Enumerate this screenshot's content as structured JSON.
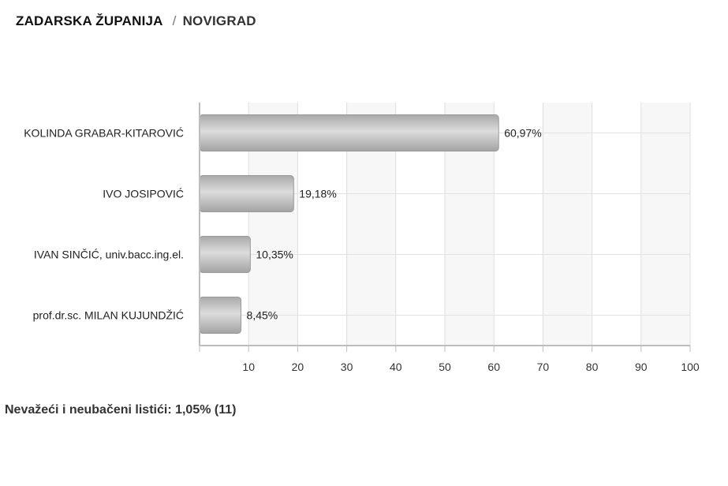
{
  "breadcrumb": {
    "region": "ZADARSKA ŽUPANIJA",
    "separator": "/",
    "city": "NOVIGRAD"
  },
  "chart_data": {
    "type": "bar",
    "orientation": "horizontal",
    "categories": [
      "KOLINDA GRABAR-KITAROVIĆ",
      "IVO JOSIPOVIĆ",
      "IVAN SINČIĆ, univ.bacc.ing.el.",
      "prof.dr.sc. MILAN KUJUNDŽIĆ"
    ],
    "values": [
      60.97,
      19.18,
      10.35,
      8.45
    ],
    "value_labels": [
      "60,97%",
      "19,18%",
      "10,35%",
      "8,45%"
    ],
    "xlim": [
      0,
      100
    ],
    "xticks": [
      10,
      20,
      30,
      40,
      50,
      60,
      70,
      80,
      90,
      100
    ],
    "grid": true,
    "bar_color": "#b8b8b8",
    "title": "",
    "xlabel": "",
    "ylabel": ""
  },
  "footer": {
    "invalid_ballots": "Nevažeći i neubačeni listići: 1,05% (11)"
  }
}
